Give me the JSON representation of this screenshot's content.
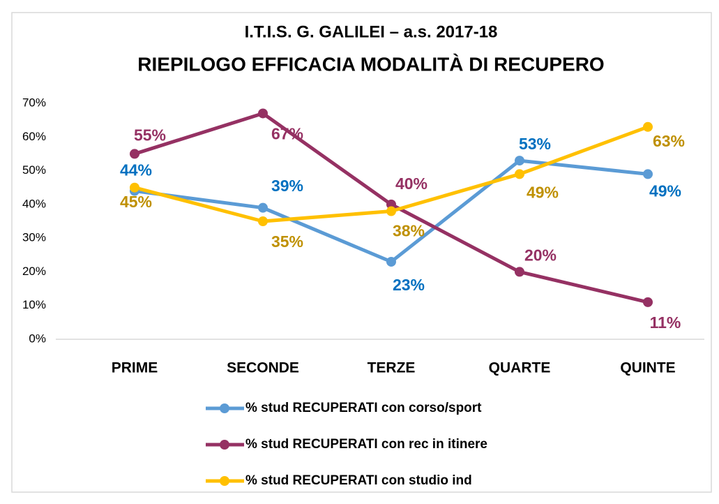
{
  "chart_data": {
    "type": "line",
    "title": "I.T.I.S. G. GALILEI – a.s. 2017-18",
    "subtitle": "RIEPILOGO EFFICACIA MODALITÀ DI RECUPERO",
    "categories": [
      "PRIME",
      "SECONDE",
      "TERZE",
      "QUARTE",
      "QUINTE"
    ],
    "series": [
      {
        "name": "% stud RECUPERATI con corso/sport",
        "color": "#5b9bd5",
        "label_color": "#0070c0",
        "values": [
          44,
          39,
          23,
          53,
          49
        ],
        "value_labels": [
          "44%",
          "39%",
          "23%",
          "53%",
          "49%"
        ]
      },
      {
        "name": "% stud RECUPERATI con rec in itinere",
        "color": "#953163",
        "label_color": "#953163",
        "values": [
          55,
          67,
          40,
          20,
          11
        ],
        "value_labels": [
          "55%",
          "67%",
          "40%",
          "20%",
          "11%"
        ]
      },
      {
        "name": "% stud RECUPERATI con studio ind",
        "color": "#ffc000",
        "label_color": "#bf9000",
        "values": [
          45,
          35,
          38,
          49,
          63
        ],
        "value_labels": [
          "45%",
          "35%",
          "38%",
          "49%",
          "63%"
        ]
      }
    ],
    "ylim": [
      0,
      70
    ],
    "yticks": [
      {
        "value": 0,
        "label": "0%"
      },
      {
        "value": 10,
        "label": "10%"
      },
      {
        "value": 20,
        "label": "20%"
      },
      {
        "value": 30,
        "label": "30%"
      },
      {
        "value": 40,
        "label": "40%"
      },
      {
        "value": 50,
        "label": "50%"
      },
      {
        "value": 60,
        "label": "60%"
      },
      {
        "value": 70,
        "label": "70%"
      }
    ],
    "grid": false,
    "legend": "bottom"
  }
}
